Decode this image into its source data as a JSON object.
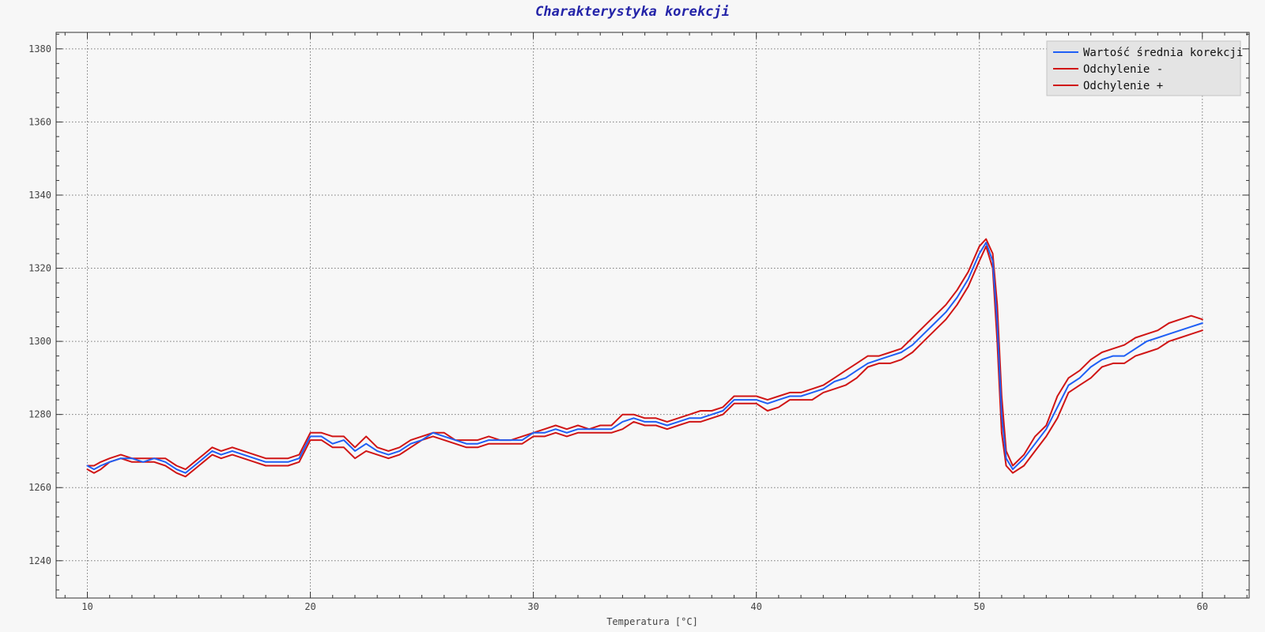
{
  "chart_data": {
    "type": "line",
    "title": "Charakterystyka korekcji",
    "xlabel": "Temperatura [°C]",
    "ylabel": "",
    "xlim": [
      8.6,
      62.1
    ],
    "ylim": [
      1229.8,
      1384.5
    ],
    "xticks": [
      10,
      20,
      30,
      40,
      50,
      60
    ],
    "yticks": [
      1240,
      1260,
      1280,
      1300,
      1320,
      1340,
      1360,
      1380
    ],
    "grid": true,
    "legend_position": "top-right",
    "series": [
      {
        "name": "Wartość średnia korekcji",
        "color": "#1f5ff5",
        "points": [
          [
            10.0,
            1266
          ],
          [
            10.3,
            1265
          ],
          [
            10.6,
            1266
          ],
          [
            11.0,
            1267
          ],
          [
            11.5,
            1268
          ],
          [
            12.0,
            1268
          ],
          [
            12.5,
            1267
          ],
          [
            13.0,
            1268
          ],
          [
            13.5,
            1267
          ],
          [
            14.0,
            1265
          ],
          [
            14.4,
            1264
          ],
          [
            14.8,
            1266
          ],
          [
            15.2,
            1268
          ],
          [
            15.6,
            1270
          ],
          [
            16.0,
            1269
          ],
          [
            16.5,
            1270
          ],
          [
            17.0,
            1269
          ],
          [
            17.5,
            1268
          ],
          [
            18.0,
            1267
          ],
          [
            18.5,
            1267
          ],
          [
            19.0,
            1267
          ],
          [
            19.5,
            1268
          ],
          [
            20.0,
            1274
          ],
          [
            20.5,
            1274
          ],
          [
            21.0,
            1272
          ],
          [
            21.5,
            1273
          ],
          [
            22.0,
            1270
          ],
          [
            22.5,
            1272
          ],
          [
            23.0,
            1270
          ],
          [
            23.5,
            1269
          ],
          [
            24.0,
            1270
          ],
          [
            24.5,
            1272
          ],
          [
            25.0,
            1273
          ],
          [
            25.5,
            1275
          ],
          [
            26.0,
            1274
          ],
          [
            26.5,
            1273
          ],
          [
            27.0,
            1272
          ],
          [
            27.5,
            1272
          ],
          [
            28.0,
            1273
          ],
          [
            28.5,
            1273
          ],
          [
            29.0,
            1273
          ],
          [
            29.5,
            1273
          ],
          [
            30.0,
            1275
          ],
          [
            30.5,
            1275
          ],
          [
            31.0,
            1276
          ],
          [
            31.5,
            1275
          ],
          [
            32.0,
            1276
          ],
          [
            32.5,
            1276
          ],
          [
            33.0,
            1276
          ],
          [
            33.5,
            1276
          ],
          [
            34.0,
            1278
          ],
          [
            34.5,
            1279
          ],
          [
            35.0,
            1278
          ],
          [
            35.5,
            1278
          ],
          [
            36.0,
            1277
          ],
          [
            36.5,
            1278
          ],
          [
            37.0,
            1279
          ],
          [
            37.5,
            1279
          ],
          [
            38.0,
            1280
          ],
          [
            38.5,
            1281
          ],
          [
            39.0,
            1284
          ],
          [
            39.5,
            1284
          ],
          [
            40.0,
            1284
          ],
          [
            40.5,
            1283
          ],
          [
            41.0,
            1284
          ],
          [
            41.5,
            1285
          ],
          [
            42.0,
            1285
          ],
          [
            42.5,
            1286
          ],
          [
            43.0,
            1287
          ],
          [
            43.5,
            1289
          ],
          [
            44.0,
            1290
          ],
          [
            44.5,
            1292
          ],
          [
            45.0,
            1294
          ],
          [
            45.5,
            1295
          ],
          [
            46.0,
            1296
          ],
          [
            46.5,
            1297
          ],
          [
            47.0,
            1299
          ],
          [
            47.5,
            1302
          ],
          [
            48.0,
            1305
          ],
          [
            48.5,
            1308
          ],
          [
            49.0,
            1312
          ],
          [
            49.5,
            1317
          ],
          [
            50.0,
            1324
          ],
          [
            50.3,
            1327
          ],
          [
            50.6,
            1322
          ],
          [
            50.8,
            1305
          ],
          [
            51.0,
            1280
          ],
          [
            51.2,
            1268
          ],
          [
            51.5,
            1265
          ],
          [
            52.0,
            1268
          ],
          [
            52.5,
            1272
          ],
          [
            53.0,
            1276
          ],
          [
            53.5,
            1282
          ],
          [
            54.0,
            1288
          ],
          [
            54.5,
            1290
          ],
          [
            55.0,
            1293
          ],
          [
            55.5,
            1295
          ],
          [
            56.0,
            1296
          ],
          [
            56.5,
            1296
          ],
          [
            57.0,
            1298
          ],
          [
            57.5,
            1300
          ],
          [
            58.0,
            1301
          ],
          [
            58.5,
            1302
          ],
          [
            59.0,
            1303
          ],
          [
            59.5,
            1304
          ],
          [
            60.0,
            1305
          ]
        ]
      },
      {
        "name": "Odchylenie -",
        "color": "#d01515",
        "points": [
          [
            10.0,
            1265
          ],
          [
            10.3,
            1264
          ],
          [
            10.6,
            1265
          ],
          [
            11.0,
            1267
          ],
          [
            11.5,
            1268
          ],
          [
            12.0,
            1267
          ],
          [
            12.5,
            1267
          ],
          [
            13.0,
            1267
          ],
          [
            13.5,
            1266
          ],
          [
            14.0,
            1264
          ],
          [
            14.4,
            1263
          ],
          [
            14.8,
            1265
          ],
          [
            15.2,
            1267
          ],
          [
            15.6,
            1269
          ],
          [
            16.0,
            1268
          ],
          [
            16.5,
            1269
          ],
          [
            17.0,
            1268
          ],
          [
            17.5,
            1267
          ],
          [
            18.0,
            1266
          ],
          [
            18.5,
            1266
          ],
          [
            19.0,
            1266
          ],
          [
            19.5,
            1267
          ],
          [
            20.0,
            1273
          ],
          [
            20.5,
            1273
          ],
          [
            21.0,
            1271
          ],
          [
            21.5,
            1271
          ],
          [
            22.0,
            1268
          ],
          [
            22.5,
            1270
          ],
          [
            23.0,
            1269
          ],
          [
            23.5,
            1268
          ],
          [
            24.0,
            1269
          ],
          [
            24.5,
            1271
          ],
          [
            25.0,
            1273
          ],
          [
            25.5,
            1274
          ],
          [
            26.0,
            1273
          ],
          [
            26.5,
            1272
          ],
          [
            27.0,
            1271
          ],
          [
            27.5,
            1271
          ],
          [
            28.0,
            1272
          ],
          [
            28.5,
            1272
          ],
          [
            29.0,
            1272
          ],
          [
            29.5,
            1272
          ],
          [
            30.0,
            1274
          ],
          [
            30.5,
            1274
          ],
          [
            31.0,
            1275
          ],
          [
            31.5,
            1274
          ],
          [
            32.0,
            1275
          ],
          [
            32.5,
            1275
          ],
          [
            33.0,
            1275
          ],
          [
            33.5,
            1275
          ],
          [
            34.0,
            1276
          ],
          [
            34.5,
            1278
          ],
          [
            35.0,
            1277
          ],
          [
            35.5,
            1277
          ],
          [
            36.0,
            1276
          ],
          [
            36.5,
            1277
          ],
          [
            37.0,
            1278
          ],
          [
            37.5,
            1278
          ],
          [
            38.0,
            1279
          ],
          [
            38.5,
            1280
          ],
          [
            39.0,
            1283
          ],
          [
            39.5,
            1283
          ],
          [
            40.0,
            1283
          ],
          [
            40.5,
            1281
          ],
          [
            41.0,
            1282
          ],
          [
            41.5,
            1284
          ],
          [
            42.0,
            1284
          ],
          [
            42.5,
            1284
          ],
          [
            43.0,
            1286
          ],
          [
            43.5,
            1287
          ],
          [
            44.0,
            1288
          ],
          [
            44.5,
            1290
          ],
          [
            45.0,
            1293
          ],
          [
            45.5,
            1294
          ],
          [
            46.0,
            1294
          ],
          [
            46.5,
            1295
          ],
          [
            47.0,
            1297
          ],
          [
            47.5,
            1300
          ],
          [
            48.0,
            1303
          ],
          [
            48.5,
            1306
          ],
          [
            49.0,
            1310
          ],
          [
            49.5,
            1315
          ],
          [
            50.0,
            1322
          ],
          [
            50.3,
            1326
          ],
          [
            50.6,
            1320
          ],
          [
            50.8,
            1300
          ],
          [
            51.0,
            1275
          ],
          [
            51.2,
            1266
          ],
          [
            51.5,
            1264
          ],
          [
            52.0,
            1266
          ],
          [
            52.5,
            1270
          ],
          [
            53.0,
            1274
          ],
          [
            53.5,
            1279
          ],
          [
            54.0,
            1286
          ],
          [
            54.5,
            1288
          ],
          [
            55.0,
            1290
          ],
          [
            55.5,
            1293
          ],
          [
            56.0,
            1294
          ],
          [
            56.5,
            1294
          ],
          [
            57.0,
            1296
          ],
          [
            57.5,
            1297
          ],
          [
            58.0,
            1298
          ],
          [
            58.5,
            1300
          ],
          [
            59.0,
            1301
          ],
          [
            59.5,
            1302
          ],
          [
            60.0,
            1303
          ]
        ]
      },
      {
        "name": "Odchylenie +",
        "color": "#d01515",
        "points": [
          [
            10.0,
            1266
          ],
          [
            10.3,
            1266
          ],
          [
            10.6,
            1267
          ],
          [
            11.0,
            1268
          ],
          [
            11.5,
            1269
          ],
          [
            12.0,
            1268
          ],
          [
            12.5,
            1268
          ],
          [
            13.0,
            1268
          ],
          [
            13.5,
            1268
          ],
          [
            14.0,
            1266
          ],
          [
            14.4,
            1265
          ],
          [
            14.8,
            1267
          ],
          [
            15.2,
            1269
          ],
          [
            15.6,
            1271
          ],
          [
            16.0,
            1270
          ],
          [
            16.5,
            1271
          ],
          [
            17.0,
            1270
          ],
          [
            17.5,
            1269
          ],
          [
            18.0,
            1268
          ],
          [
            18.5,
            1268
          ],
          [
            19.0,
            1268
          ],
          [
            19.5,
            1269
          ],
          [
            20.0,
            1275
          ],
          [
            20.5,
            1275
          ],
          [
            21.0,
            1274
          ],
          [
            21.5,
            1274
          ],
          [
            22.0,
            1271
          ],
          [
            22.5,
            1274
          ],
          [
            23.0,
            1271
          ],
          [
            23.5,
            1270
          ],
          [
            24.0,
            1271
          ],
          [
            24.5,
            1273
          ],
          [
            25.0,
            1274
          ],
          [
            25.5,
            1275
          ],
          [
            26.0,
            1275
          ],
          [
            26.5,
            1273
          ],
          [
            27.0,
            1273
          ],
          [
            27.5,
            1273
          ],
          [
            28.0,
            1274
          ],
          [
            28.5,
            1273
          ],
          [
            29.0,
            1273
          ],
          [
            29.5,
            1274
          ],
          [
            30.0,
            1275
          ],
          [
            30.5,
            1276
          ],
          [
            31.0,
            1277
          ],
          [
            31.5,
            1276
          ],
          [
            32.0,
            1277
          ],
          [
            32.5,
            1276
          ],
          [
            33.0,
            1277
          ],
          [
            33.5,
            1277
          ],
          [
            34.0,
            1280
          ],
          [
            34.5,
            1280
          ],
          [
            35.0,
            1279
          ],
          [
            35.5,
            1279
          ],
          [
            36.0,
            1278
          ],
          [
            36.5,
            1279
          ],
          [
            37.0,
            1280
          ],
          [
            37.5,
            1281
          ],
          [
            38.0,
            1281
          ],
          [
            38.5,
            1282
          ],
          [
            39.0,
            1285
          ],
          [
            39.5,
            1285
          ],
          [
            40.0,
            1285
          ],
          [
            40.5,
            1284
          ],
          [
            41.0,
            1285
          ],
          [
            41.5,
            1286
          ],
          [
            42.0,
            1286
          ],
          [
            42.5,
            1287
          ],
          [
            43.0,
            1288
          ],
          [
            43.5,
            1290
          ],
          [
            44.0,
            1292
          ],
          [
            44.5,
            1294
          ],
          [
            45.0,
            1296
          ],
          [
            45.5,
            1296
          ],
          [
            46.0,
            1297
          ],
          [
            46.5,
            1298
          ],
          [
            47.0,
            1301
          ],
          [
            47.5,
            1304
          ],
          [
            48.0,
            1307
          ],
          [
            48.5,
            1310
          ],
          [
            49.0,
            1314
          ],
          [
            49.5,
            1319
          ],
          [
            50.0,
            1326
          ],
          [
            50.3,
            1328
          ],
          [
            50.6,
            1324
          ],
          [
            50.8,
            1310
          ],
          [
            51.0,
            1285
          ],
          [
            51.2,
            1270
          ],
          [
            51.5,
            1266
          ],
          [
            52.0,
            1269
          ],
          [
            52.5,
            1274
          ],
          [
            53.0,
            1277
          ],
          [
            53.5,
            1285
          ],
          [
            54.0,
            1290
          ],
          [
            54.5,
            1292
          ],
          [
            55.0,
            1295
          ],
          [
            55.5,
            1297
          ],
          [
            56.0,
            1298
          ],
          [
            56.5,
            1299
          ],
          [
            57.0,
            1301
          ],
          [
            57.5,
            1302
          ],
          [
            58.0,
            1303
          ],
          [
            58.5,
            1305
          ],
          [
            59.0,
            1306
          ],
          [
            59.5,
            1307
          ],
          [
            60.0,
            1306
          ]
        ]
      }
    ]
  }
}
